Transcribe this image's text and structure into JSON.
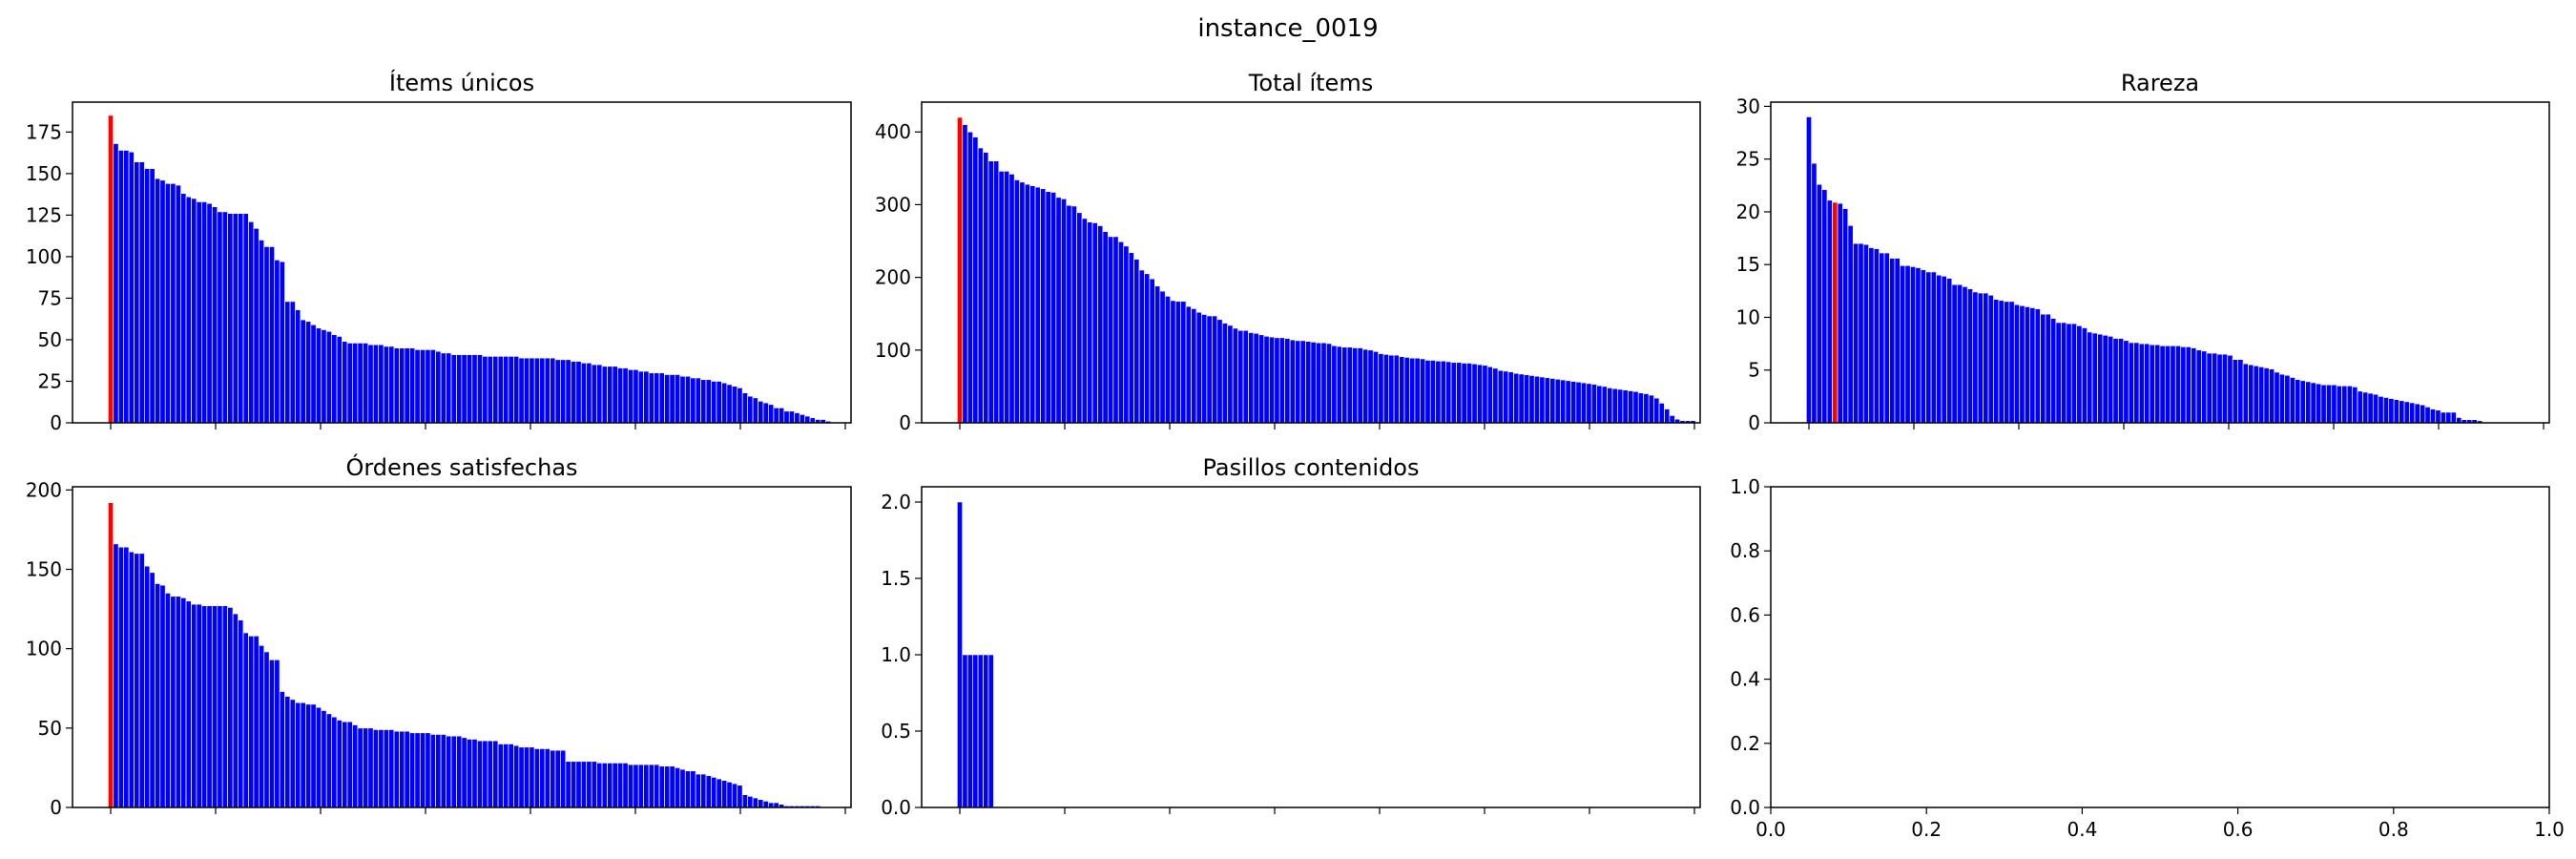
{
  "figure": {
    "title": "instance_0019"
  },
  "colors": {
    "bar": "#0000ff",
    "highlight": "#ff0000",
    "bar_edge": "#ffffff"
  },
  "chart_data": [
    {
      "type": "bar",
      "title": "Ítems únicos",
      "ylim": [
        0,
        193
      ],
      "yticks": [
        0,
        25,
        50,
        75,
        100,
        125,
        150,
        175
      ],
      "highlight_index": 0,
      "values": [
        185,
        168,
        164,
        164,
        163,
        157,
        157,
        153,
        153,
        147,
        146,
        144,
        144,
        143,
        138,
        136,
        135,
        133,
        133,
        132,
        130,
        127,
        127,
        126,
        126,
        126,
        126,
        121,
        117,
        110,
        106,
        106,
        98,
        97,
        73,
        73,
        68,
        62,
        61,
        59,
        57,
        56,
        55,
        53,
        52,
        49,
        48,
        48,
        48,
        48,
        47,
        47,
        47,
        46,
        46,
        45,
        45,
        45,
        45,
        44,
        44,
        44,
        44,
        43,
        42,
        42,
        41,
        41,
        41,
        41,
        41,
        41,
        40,
        40,
        40,
        40,
        40,
        40,
        40,
        39,
        39,
        39,
        39,
        39,
        39,
        39,
        38,
        38,
        38,
        37,
        37,
        36,
        36,
        35,
        35,
        34,
        34,
        34,
        33,
        33,
        32,
        32,
        31,
        31,
        30,
        30,
        30,
        29,
        29,
        29,
        28,
        28,
        27,
        27,
        26,
        26,
        25,
        25,
        24,
        23,
        22,
        21,
        18,
        16,
        15,
        13,
        12,
        11,
        9,
        9,
        7,
        7,
        6,
        5,
        4,
        3,
        2,
        2,
        1
      ]
    },
    {
      "type": "bar",
      "title": "Total ítems",
      "ylim": [
        0,
        441
      ],
      "yticks": [
        0,
        100,
        200,
        300,
        400
      ],
      "highlight_index": 0,
      "values": [
        420,
        410,
        400,
        393,
        378,
        372,
        360,
        360,
        346,
        346,
        342,
        334,
        331,
        328,
        326,
        324,
        322,
        318,
        317,
        310,
        308,
        299,
        298,
        289,
        281,
        276,
        275,
        271,
        263,
        256,
        256,
        249,
        243,
        234,
        225,
        210,
        205,
        198,
        188,
        181,
        174,
        168,
        167,
        167,
        160,
        157,
        152,
        149,
        147,
        147,
        142,
        137,
        134,
        130,
        127,
        127,
        124,
        123,
        121,
        119,
        118,
        117,
        117,
        116,
        114,
        113,
        113,
        112,
        111,
        110,
        110,
        109,
        106,
        105,
        104,
        104,
        103,
        103,
        101,
        100,
        98,
        95,
        94,
        93,
        93,
        91,
        90,
        89,
        89,
        88,
        86,
        86,
        85,
        85,
        84,
        83,
        83,
        82,
        82,
        81,
        80,
        79,
        77,
        75,
        72,
        71,
        70,
        68,
        67,
        66,
        65,
        64,
        63,
        62,
        61,
        60,
        59,
        58,
        57,
        56,
        55,
        54,
        53,
        51,
        50,
        48,
        47,
        46,
        45,
        44,
        43,
        41,
        40,
        38,
        34,
        27,
        19,
        10,
        5,
        3,
        3,
        3
      ]
    },
    {
      "type": "bar",
      "title": "Rareza",
      "ylim": [
        0,
        30.4
      ],
      "yticks": [
        0,
        5,
        10,
        15,
        20,
        25,
        30
      ],
      "highlight_index": 5,
      "values": [
        29.0,
        24.6,
        22.6,
        22.1,
        21.1,
        20.9,
        20.8,
        20.3,
        18.7,
        17.0,
        17.0,
        16.9,
        16.6,
        16.5,
        16.1,
        16.1,
        15.6,
        15.6,
        14.9,
        14.9,
        14.8,
        14.7,
        14.5,
        14.3,
        14.3,
        14.0,
        13.9,
        13.7,
        13.1,
        13.1,
        12.9,
        12.7,
        12.4,
        12.3,
        12.3,
        12.1,
        11.7,
        11.6,
        11.5,
        11.5,
        11.2,
        11.1,
        11.0,
        10.9,
        10.8,
        10.3,
        10.3,
        9.9,
        9.5,
        9.5,
        9.4,
        9.4,
        9.2,
        9.0,
        8.6,
        8.5,
        8.4,
        8.3,
        8.2,
        8.0,
        8.0,
        7.8,
        7.6,
        7.6,
        7.5,
        7.5,
        7.4,
        7.4,
        7.3,
        7.3,
        7.3,
        7.3,
        7.2,
        7.2,
        7.1,
        6.9,
        6.8,
        6.6,
        6.6,
        6.5,
        6.5,
        6.4,
        6.0,
        6.0,
        5.6,
        5.5,
        5.4,
        5.3,
        5.2,
        5.1,
        4.8,
        4.6,
        4.5,
        4.3,
        4.1,
        4.0,
        3.9,
        3.8,
        3.7,
        3.6,
        3.6,
        3.6,
        3.5,
        3.5,
        3.5,
        3.4,
        3.0,
        2.9,
        2.8,
        2.7,
        2.5,
        2.4,
        2.3,
        2.2,
        2.1,
        2.0,
        1.9,
        1.8,
        1.7,
        1.5,
        1.3,
        1.2,
        1.0,
        1.0,
        1.0,
        0.5,
        0.3,
        0.3,
        0.3,
        0.2
      ]
    },
    {
      "type": "bar",
      "title": "Órdenes satisfechas",
      "ylim": [
        0,
        202
      ],
      "yticks": [
        0,
        50,
        100,
        150,
        200
      ],
      "highlight_index": 0,
      "values": [
        192,
        166,
        164,
        164,
        161,
        160,
        160,
        152,
        148,
        141,
        140,
        135,
        133,
        133,
        132,
        130,
        128,
        128,
        127,
        127,
        127,
        127,
        127,
        126,
        122,
        118,
        110,
        108,
        108,
        102,
        98,
        93,
        93,
        73,
        70,
        68,
        66,
        66,
        65,
        65,
        63,
        61,
        59,
        57,
        55,
        54,
        54,
        52,
        50,
        50,
        50,
        49,
        49,
        49,
        49,
        48,
        48,
        48,
        47,
        47,
        47,
        47,
        46,
        46,
        46,
        45,
        45,
        45,
        44,
        43,
        43,
        42,
        42,
        42,
        42,
        40,
        40,
        40,
        39,
        38,
        38,
        38,
        37,
        37,
        37,
        36,
        36,
        36,
        29,
        29,
        29,
        29,
        29,
        29,
        28,
        28,
        28,
        28,
        28,
        28,
        27,
        27,
        27,
        27,
        27,
        27,
        26,
        26,
        26,
        25,
        24,
        23,
        23,
        21,
        21,
        20,
        19,
        18,
        17,
        16,
        15,
        14,
        8,
        7,
        6,
        5,
        4,
        3,
        3,
        2,
        1,
        1,
        1,
        1,
        1,
        1,
        1
      ]
    },
    {
      "type": "bar",
      "title": "Pasillos contenidos",
      "ylim": [
        0,
        2.1
      ],
      "yticks": [
        0.0,
        0.5,
        1.0,
        1.5,
        2.0
      ],
      "yticklabels": [
        "0.0",
        "0.5",
        "1.0",
        "1.5",
        "2.0"
      ],
      "highlight_index": -1,
      "slot_count": 142,
      "values": [
        2,
        1,
        1,
        1,
        1,
        1,
        1
      ]
    },
    {
      "type": "empty",
      "title": "",
      "xlim": [
        0,
        1
      ],
      "ylim": [
        0,
        1
      ],
      "xticks": [
        0.0,
        0.2,
        0.4,
        0.6,
        0.8,
        1.0
      ],
      "xticklabels": [
        "0.0",
        "0.2",
        "0.4",
        "0.6",
        "0.8",
        "1.0"
      ],
      "yticks": [
        0.0,
        0.2,
        0.4,
        0.6,
        0.8,
        1.0
      ],
      "yticklabels": [
        "0.0",
        "0.2",
        "0.4",
        "0.6",
        "0.8",
        "1.0"
      ]
    }
  ]
}
